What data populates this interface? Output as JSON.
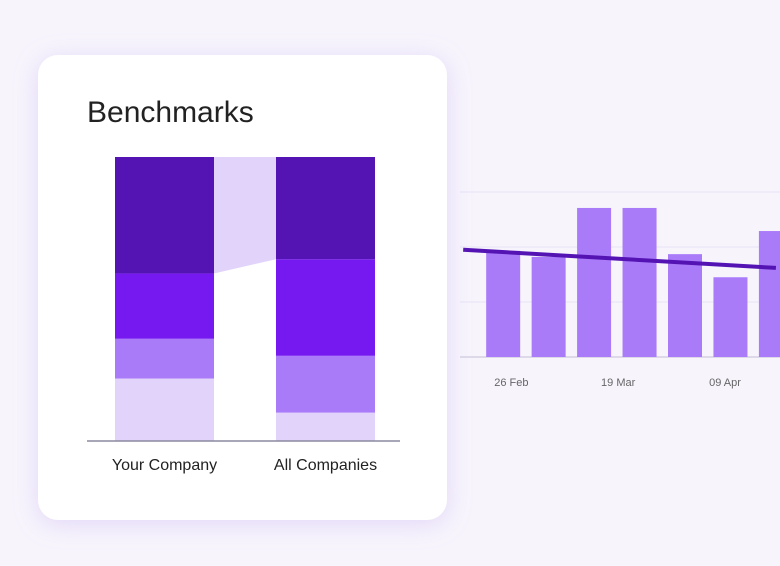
{
  "chart_data": [
    {
      "type": "stacked-bar",
      "title": "Benchmarks",
      "categories": [
        "Your Company",
        "All Companies"
      ],
      "ylim": [
        0,
        100
      ],
      "series": [
        {
          "color": "#e2d3fb",
          "values": [
            22,
            10
          ]
        },
        {
          "color": "#a97bf9",
          "values": [
            14,
            20
          ]
        },
        {
          "color": "#7519f0",
          "values": [
            23,
            34
          ]
        },
        {
          "color": "#5414b4",
          "values": [
            41,
            36
          ]
        }
      ]
    },
    {
      "type": "bar-line",
      "x": [
        0,
        1,
        2,
        3,
        4,
        5,
        6
      ],
      "xlim": [
        -0.95,
        6.09
      ],
      "xticks": [
        {
          "value": 0.18,
          "label": "26 Feb"
        },
        {
          "value": 2.53,
          "label": "19 Mar"
        },
        {
          "value": 4.88,
          "label": "09 Apr"
        }
      ],
      "ylim": [
        0,
        3
      ],
      "yticks": [
        1,
        2,
        3
      ],
      "grid": true,
      "series": [
        {
          "type": "bar",
          "color": "#a97bf9",
          "values": [
            1.93,
            1.82,
            2.71,
            2.71,
            1.87,
            1.45,
            2.29
          ]
        },
        {
          "type": "line",
          "color": "#5414b4",
          "x": [
            -0.88,
            6.0
          ],
          "values": [
            1.95,
            1.62
          ]
        }
      ]
    }
  ]
}
